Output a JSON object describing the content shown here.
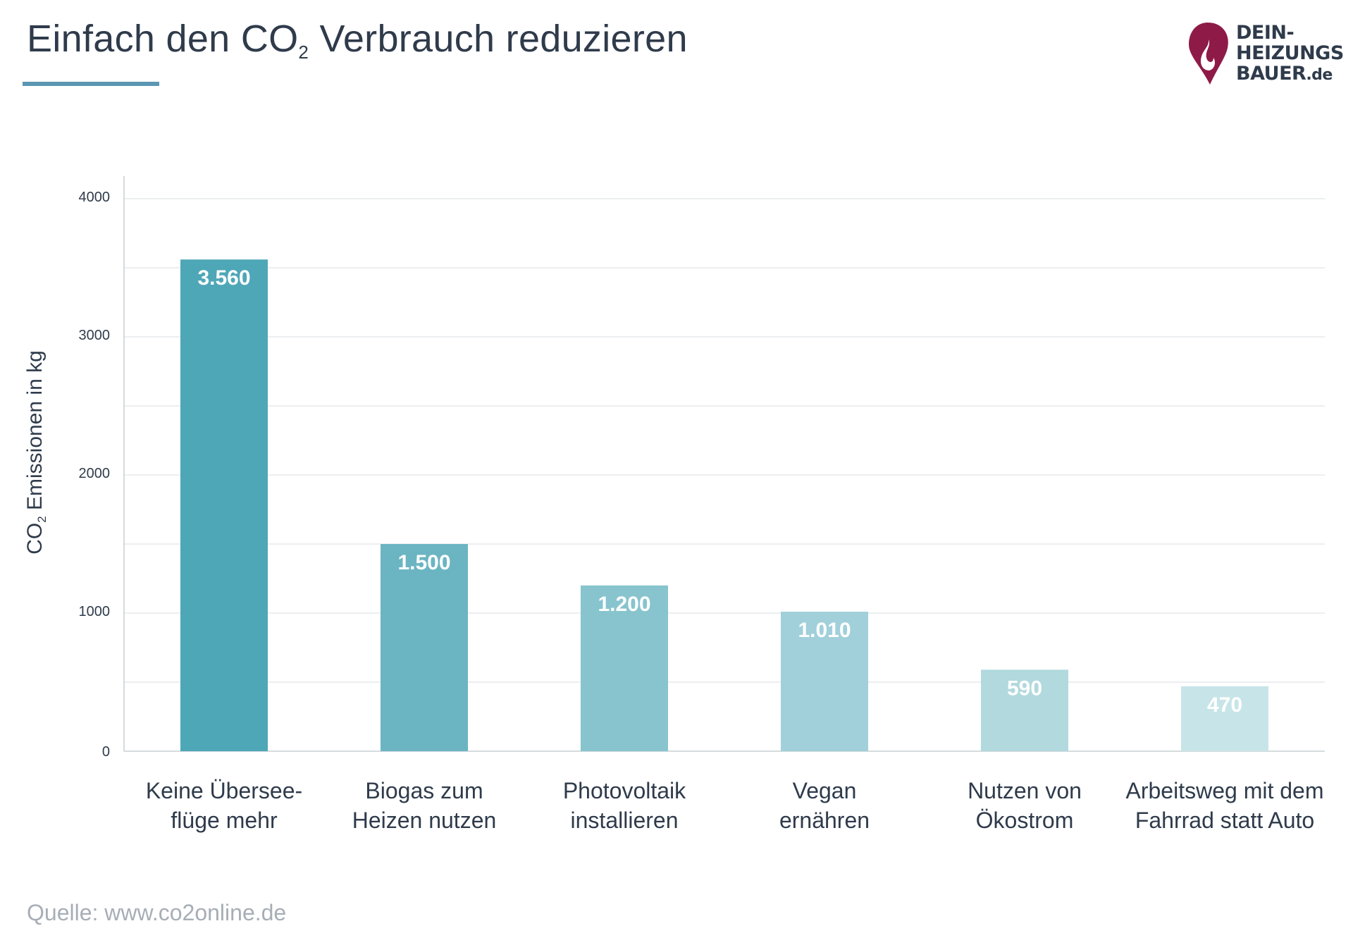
{
  "header": {
    "title_pre": "Einfach den CO",
    "title_sub": "2",
    "title_post": " Verbrauch reduzieren"
  },
  "logo": {
    "line1": "DEIN-",
    "line2": "HEIZUNGS",
    "line3": "BAUER",
    "suffix": ".de",
    "colors": {
      "flame": "#8e1b47",
      "text": "#2f3b4b"
    }
  },
  "footer": {
    "source": "Quelle: www.co2online.de"
  },
  "colors": {
    "text": "#2f3b4b",
    "underline": "#5b97b2",
    "grid": "#e6e9ec",
    "axis": "#c9cfd4",
    "bar_label": "#ffffff",
    "bars": [
      "#4ea7b7",
      "#6bb5c2",
      "#87c4ce",
      "#a1d0da",
      "#b1d9de",
      "#c7e5e8"
    ]
  },
  "chart_data": {
    "type": "bar",
    "title": "Einfach den CO2 Verbrauch reduzieren",
    "ylabel_pre": "CO",
    "ylabel_sub": "2",
    "ylabel_post": " Emissionen in kg",
    "categories": [
      [
        "Keine Übersee-",
        "flüge mehr"
      ],
      [
        "Biogas zum",
        "Heizen nutzen"
      ],
      [
        "Photovoltaik",
        "installieren"
      ],
      [
        "Vegan",
        "ernähren"
      ],
      [
        "Nutzen von",
        "Ökostrom"
      ],
      [
        "Arbeitsweg mit dem",
        "Fahrrad statt Auto"
      ]
    ],
    "values": [
      3560,
      1500,
      1200,
      1010,
      590,
      470
    ],
    "value_labels": [
      "3.560",
      "1.500",
      "1.200",
      "1.010",
      "590",
      "470"
    ],
    "ylim": [
      0,
      4000
    ],
    "yticks": [
      0,
      1000,
      2000,
      3000,
      4000
    ],
    "minor_grid_step": 500,
    "grid": true,
    "legend": "none"
  }
}
